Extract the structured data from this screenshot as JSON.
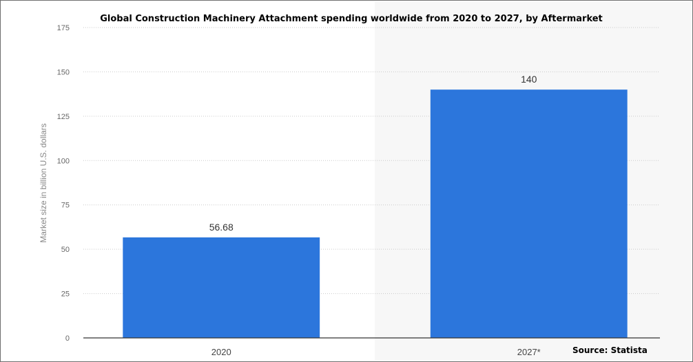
{
  "chart_data": {
    "type": "bar",
    "title": "Global Construction Machinery Attachment spending worldwide from 2020 to 2027, by Aftermarket",
    "categories": [
      "2020",
      "2027*"
    ],
    "values": [
      56.68,
      140
    ],
    "value_labels": [
      "56.68",
      "140"
    ],
    "xlabel": "",
    "ylabel": "Market size in billion U.S. dollars",
    "ylim": [
      0,
      175
    ],
    "yticks": [
      0,
      25,
      50,
      75,
      100,
      125,
      150,
      175
    ],
    "grid": true,
    "bar_color": "#2c76dc",
    "source": "Source: Statista"
  }
}
